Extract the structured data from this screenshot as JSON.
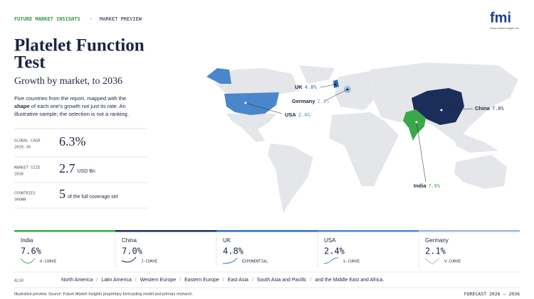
{
  "header": {
    "brand": "FUTURE MARKET INSIGHTS",
    "separator": "·",
    "section": "MARKET PREVIEW",
    "logo": "fmi",
    "logo_caption": "Future Market Insights Inc."
  },
  "title": {
    "lines": [
      "Platelet Function",
      "Test"
    ],
    "subtitle": "Growth by market, to 2036"
  },
  "description": {
    "before": "Five countries from the report, mapped with the",
    "bold": "shape",
    "after_lines": [
      "of each one's growth not just its rate. An",
      "illustrative sample; the selection is not a ranking."
    ]
  },
  "stats": [
    {
      "label_lines": [
        "GLOBAL CAGR",
        "2026-36"
      ],
      "value": "6.3%",
      "unit": ""
    },
    {
      "label_lines": [
        "MARKET SIZE",
        "2036"
      ],
      "value": "2.7",
      "unit": "USD Bn"
    },
    {
      "label_lines": [
        "COUNTRIES",
        "SHOWN"
      ],
      "value": "5",
      "unit": "of the full coverage set"
    }
  ],
  "map_labels": [
    {
      "country": "UK",
      "cagr": "4.8%",
      "color": "#2e6fb5"
    },
    {
      "country": "Germany",
      "cagr": "2.1%",
      "color": "#7fa9dc"
    },
    {
      "country": "USA",
      "cagr": "2.4%",
      "color": "#4a86cc"
    },
    {
      "country": "China",
      "cagr": "7.0%",
      "color": "#1b2e5a"
    },
    {
      "country": "India",
      "cagr": "7.6%",
      "color": "#3aa84a"
    }
  ],
  "cards": [
    {
      "country": "India",
      "cagr": "7.6%",
      "curve": "U-CURVE",
      "color": "#3aa84a"
    },
    {
      "country": "China",
      "cagr": "7.0%",
      "curve": "J-CURVE",
      "color": "#1b2e5a"
    },
    {
      "country": "UK",
      "cagr": "4.8%",
      "curve": "EXPONENTIAL",
      "color": "#2e6fb5"
    },
    {
      "country": "USA",
      "cagr": "2.4%",
      "curve": "S-CURVE",
      "color": "#4a86cc"
    },
    {
      "country": "Germany",
      "cagr": "2.1%",
      "curve": "V-CURVE",
      "color": "#9bbbe2"
    }
  ],
  "also": {
    "label": "ALSO",
    "items": [
      "North America",
      "Latin America",
      "Western Europe",
      "Eastern Europe",
      "East Asia",
      "South Asia and Pacific",
      "and the Middle East and Africa."
    ]
  },
  "footer": {
    "source": "Illustrative preview. Source: Future Market Insights proprietary forecasting model and primary research.",
    "forecast": "FORECAST 2026 – 2036"
  }
}
